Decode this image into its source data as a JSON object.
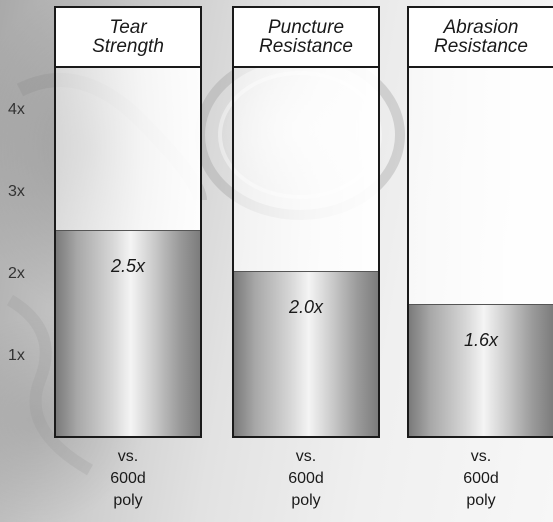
{
  "chart_data": {
    "type": "bar",
    "categories": [
      "Tear\nStrength",
      "Puncture\nResistance",
      "Abrasion\nResistance"
    ],
    "values": [
      2.5,
      2.0,
      1.6
    ],
    "value_labels": [
      "2.5x",
      "2.0x",
      "1.6x"
    ],
    "yticks": [
      "1x",
      "2x",
      "3x",
      "4x"
    ],
    "ylim": [
      0,
      5
    ],
    "footer_labels": [
      "vs.\n600d\npoly",
      "vs.\n600d\npoly",
      "vs.\n600d\npoly"
    ],
    "bar_style": "metallic-gray",
    "grid": false
  }
}
